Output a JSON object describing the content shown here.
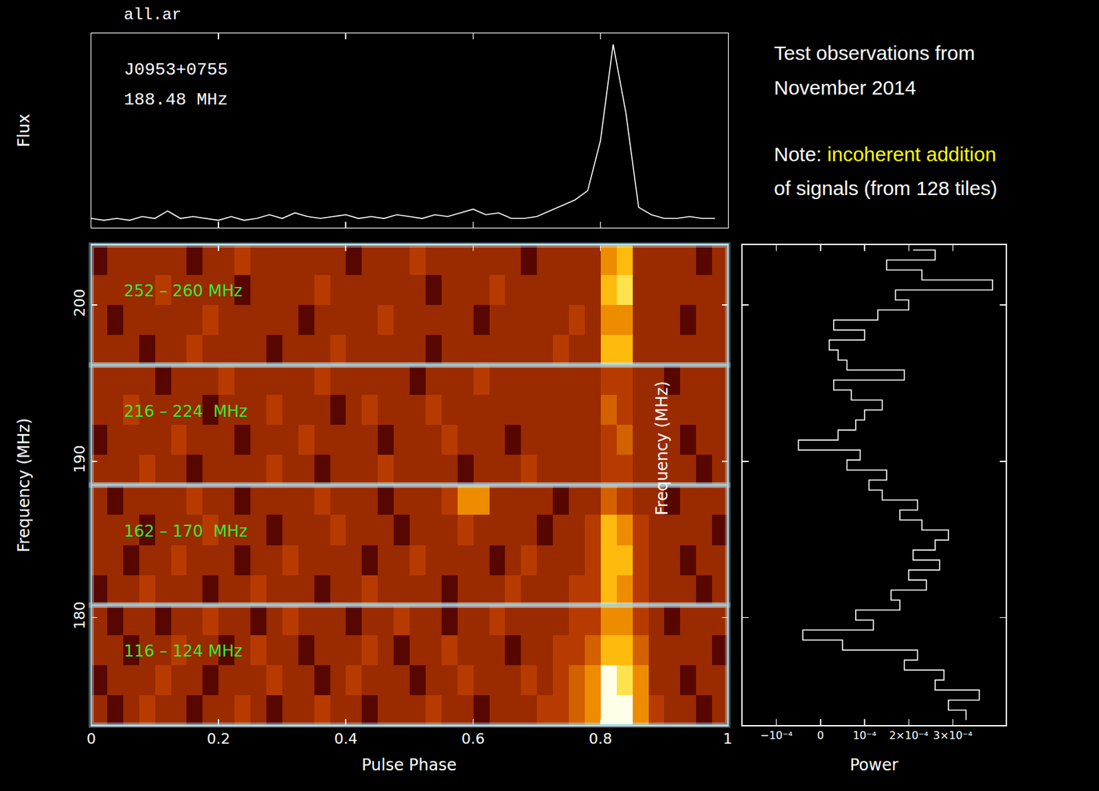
{
  "title": "all.ar",
  "notes": [
    {
      "lines": [
        [
          {
            "text": "Test observations from"
          }
        ],
        [
          {
            "text": "November 2014"
          }
        ]
      ]
    },
    {
      "lines": [
        [
          {
            "text": "Note: "
          },
          {
            "text": "incoherent addition",
            "color": "#ffff00"
          }
        ],
        [
          {
            "text": "of signals (from 128 tiles)"
          }
        ]
      ]
    }
  ],
  "chart_data": [
    {
      "type": "line",
      "ylabel": "Flux",
      "annotations": [
        "J0953+0755",
        "188.48 MHz"
      ],
      "color": "#ffffff",
      "x": [
        0,
        0.02,
        0.04,
        0.06,
        0.08,
        0.1,
        0.12,
        0.14,
        0.16,
        0.18,
        0.2,
        0.22,
        0.24,
        0.26,
        0.28,
        0.3,
        0.32,
        0.34,
        0.36,
        0.38,
        0.4,
        0.42,
        0.44,
        0.46,
        0.48,
        0.5,
        0.52,
        0.54,
        0.56,
        0.58,
        0.6,
        0.62,
        0.64,
        0.66,
        0.68,
        0.7,
        0.72,
        0.74,
        0.76,
        0.78,
        0.8,
        0.82,
        0.84,
        0.86,
        0.88,
        0.9,
        0.92,
        0.94,
        0.96,
        0.98
      ],
      "values": [
        0.03,
        0.02,
        0.03,
        0.02,
        0.04,
        0.03,
        0.07,
        0.03,
        0.04,
        0.03,
        0.02,
        0.04,
        0.02,
        0.03,
        0.05,
        0.03,
        0.06,
        0.04,
        0.03,
        0.04,
        0.05,
        0.03,
        0.04,
        0.03,
        0.05,
        0.04,
        0.03,
        0.05,
        0.04,
        0.06,
        0.08,
        0.05,
        0.06,
        0.03,
        0.03,
        0.04,
        0.07,
        0.1,
        0.13,
        0.18,
        0.45,
        0.97,
        0.6,
        0.09,
        0.05,
        0.03,
        0.03,
        0.04,
        0.03,
        0.03
      ],
      "xlim": [
        0,
        1
      ],
      "xticks": [
        0,
        0.2,
        0.4,
        0.6,
        0.8,
        1
      ],
      "ylim": [
        -0.02,
        1.03
      ],
      "tick_labels": false
    },
    {
      "type": "heatmap",
      "xlabel": "Pulse Phase",
      "ylabel": "Frequency (MHz)",
      "annotations": [
        "116 – 124 MHz",
        "162 – 170  MHz",
        "216 – 224  MHz",
        "252 – 260 MHz"
      ],
      "x": [
        0.0125,
        0.0375,
        0.0625,
        0.0875,
        0.1125,
        0.1375,
        0.1625,
        0.1875,
        0.2125,
        0.2375,
        0.2625,
        0.2875,
        0.3125,
        0.3375,
        0.3625,
        0.3875,
        0.4125,
        0.4375,
        0.4625,
        0.4875,
        0.5125,
        0.5375,
        0.5625,
        0.5875,
        0.6125,
        0.6375,
        0.6625,
        0.6875,
        0.7125,
        0.7375,
        0.7625,
        0.7875,
        0.8125,
        0.8375,
        0.8625,
        0.8875,
        0.9125,
        0.9375,
        0.9625,
        0.9875
      ],
      "y": [
        174.08,
        176.0,
        177.92,
        179.84,
        181.76,
        183.68,
        185.6,
        187.52,
        189.44,
        191.36,
        193.28,
        195.2,
        197.12,
        199.04,
        200.96,
        202.88
      ],
      "cells": [
        [
          3,
          2,
          3,
          4,
          3,
          3,
          2,
          3,
          3,
          4,
          3,
          2,
          3,
          3,
          4,
          3,
          3,
          2,
          3,
          3,
          3,
          4,
          3,
          3,
          2,
          3,
          3,
          3,
          4,
          4,
          5,
          6,
          9,
          9,
          6,
          4,
          3,
          3,
          2,
          3
        ],
        [
          2,
          3,
          3,
          3,
          4,
          3,
          3,
          2,
          3,
          3,
          3,
          4,
          3,
          3,
          2,
          3,
          4,
          3,
          3,
          3,
          2,
          3,
          3,
          4,
          3,
          3,
          3,
          4,
          3,
          4,
          5,
          6,
          9,
          8,
          6,
          3,
          3,
          2,
          3,
          3
        ],
        [
          3,
          3,
          2,
          3,
          3,
          4,
          3,
          3,
          2,
          3,
          4,
          3,
          3,
          2,
          3,
          3,
          3,
          4,
          3,
          2,
          3,
          3,
          4,
          3,
          3,
          3,
          2,
          3,
          3,
          4,
          4,
          5,
          7,
          7,
          5,
          3,
          3,
          3,
          3,
          2
        ],
        [
          3,
          2,
          3,
          3,
          2,
          3,
          3,
          4,
          3,
          3,
          2,
          3,
          4,
          3,
          3,
          3,
          2,
          3,
          3,
          4,
          3,
          3,
          2,
          3,
          3,
          4,
          3,
          3,
          3,
          3,
          4,
          4,
          6,
          6,
          4,
          3,
          2,
          3,
          3,
          3
        ],
        [
          2,
          3,
          3,
          4,
          3,
          3,
          3,
          2,
          3,
          3,
          4,
          3,
          3,
          3,
          2,
          3,
          3,
          4,
          3,
          3,
          3,
          3,
          2,
          3,
          3,
          3,
          4,
          3,
          3,
          3,
          4,
          4,
          7,
          6,
          4,
          3,
          3,
          3,
          2,
          3
        ],
        [
          3,
          3,
          2,
          3,
          3,
          4,
          3,
          3,
          3,
          2,
          3,
          3,
          4,
          3,
          3,
          3,
          3,
          2,
          3,
          3,
          4,
          3,
          3,
          3,
          3,
          2,
          3,
          4,
          3,
          3,
          3,
          4,
          7,
          7,
          4,
          3,
          3,
          2,
          3,
          3
        ],
        [
          3,
          3,
          3,
          2,
          3,
          3,
          3,
          4,
          3,
          3,
          3,
          2,
          3,
          3,
          3,
          4,
          3,
          3,
          3,
          2,
          3,
          3,
          3,
          4,
          3,
          3,
          3,
          3,
          2,
          3,
          3,
          4,
          7,
          6,
          4,
          3,
          3,
          3,
          3,
          2
        ],
        [
          3,
          2,
          3,
          3,
          3,
          3,
          4,
          3,
          3,
          2,
          3,
          3,
          3,
          3,
          4,
          3,
          3,
          3,
          2,
          3,
          3,
          3,
          4,
          6,
          6,
          3,
          3,
          3,
          3,
          2,
          3,
          3,
          5,
          4,
          3,
          3,
          2,
          3,
          3,
          3
        ],
        [
          3,
          3,
          3,
          4,
          3,
          3,
          2,
          3,
          3,
          3,
          3,
          4,
          3,
          3,
          2,
          3,
          3,
          3,
          4,
          3,
          3,
          3,
          3,
          2,
          3,
          3,
          3,
          4,
          3,
          3,
          3,
          3,
          4,
          4,
          3,
          3,
          3,
          3,
          2,
          3
        ],
        [
          2,
          3,
          3,
          3,
          3,
          4,
          3,
          3,
          3,
          2,
          3,
          3,
          3,
          4,
          3,
          3,
          3,
          3,
          2,
          3,
          3,
          3,
          4,
          3,
          3,
          3,
          2,
          3,
          3,
          3,
          3,
          3,
          4,
          5,
          3,
          3,
          3,
          2,
          3,
          3
        ],
        [
          3,
          3,
          4,
          3,
          3,
          3,
          3,
          2,
          3,
          3,
          3,
          4,
          3,
          3,
          3,
          2,
          3,
          4,
          3,
          3,
          3,
          4,
          3,
          3,
          3,
          3,
          3,
          3,
          3,
          3,
          3,
          3,
          5,
          4,
          3,
          3,
          3,
          3,
          3,
          3
        ],
        [
          3,
          3,
          3,
          3,
          2,
          3,
          3,
          3,
          4,
          3,
          3,
          3,
          3,
          3,
          4,
          3,
          3,
          3,
          3,
          3,
          2,
          3,
          3,
          3,
          4,
          3,
          3,
          3,
          3,
          3,
          3,
          3,
          4,
          4,
          3,
          3,
          2,
          3,
          3,
          3
        ],
        [
          3,
          3,
          3,
          2,
          3,
          3,
          4,
          3,
          3,
          3,
          3,
          2,
          3,
          3,
          3,
          4,
          3,
          3,
          3,
          3,
          3,
          2,
          3,
          3,
          3,
          3,
          3,
          3,
          3,
          4,
          3,
          3,
          7,
          7,
          3,
          3,
          3,
          3,
          3,
          3
        ],
        [
          3,
          2,
          3,
          3,
          3,
          3,
          3,
          4,
          3,
          3,
          3,
          3,
          3,
          2,
          3,
          3,
          3,
          3,
          4,
          3,
          3,
          3,
          3,
          3,
          2,
          3,
          3,
          3,
          3,
          3,
          4,
          3,
          6,
          6,
          3,
          3,
          3,
          2,
          3,
          3
        ],
        [
          3,
          3,
          3,
          3,
          4,
          3,
          3,
          3,
          3,
          2,
          3,
          3,
          3,
          3,
          4,
          3,
          3,
          3,
          3,
          3,
          3,
          2,
          3,
          3,
          3,
          4,
          3,
          3,
          3,
          3,
          3,
          3,
          7,
          8,
          3,
          3,
          3,
          3,
          3,
          3
        ],
        [
          2,
          3,
          3,
          3,
          3,
          3,
          2,
          3,
          3,
          4,
          3,
          3,
          3,
          3,
          3,
          3,
          2,
          3,
          3,
          3,
          4,
          3,
          3,
          3,
          3,
          3,
          3,
          2,
          3,
          3,
          3,
          3,
          6,
          7,
          3,
          3,
          3,
          3,
          2,
          3
        ]
      ],
      "zlim": [
        0,
        9
      ],
      "xlim": [
        0,
        1
      ],
      "xticks": [
        0,
        0.2,
        0.4,
        0.6,
        0.8,
        1
      ],
      "ylim": [
        173.12,
        203.84
      ],
      "yticks": [
        180,
        190,
        200
      ]
    },
    {
      "type": "line",
      "orientation": "horizontal",
      "xlabel": "Power",
      "ylabel": "Frequency (MHz)",
      "color": "#ffffff",
      "y": [
        173.44,
        174.08,
        174.72,
        175.36,
        176.0,
        176.64,
        177.28,
        177.92,
        178.56,
        179.2,
        179.84,
        180.48,
        181.12,
        181.76,
        182.4,
        183.04,
        183.68,
        184.32,
        184.96,
        185.6,
        186.24,
        186.88,
        187.52,
        188.16,
        188.8,
        189.44,
        190.08,
        190.72,
        191.36,
        192.0,
        192.64,
        193.28,
        193.92,
        194.56,
        195.2,
        195.84,
        196.48,
        197.12,
        197.76,
        198.4,
        199.04,
        199.68,
        200.32,
        200.96,
        201.6,
        202.24,
        202.88,
        203.52
      ],
      "values": [
        0.00033,
        0.00029,
        0.00036,
        0.00026,
        0.00028,
        0.00019,
        0.00022,
        5e-05,
        -4e-05,
        0.00012,
        8e-05,
        0.00018,
        0.00016,
        0.00024,
        0.0002,
        0.00027,
        0.00021,
        0.00026,
        0.00029,
        0.00023,
        0.00018,
        0.00022,
        0.00014,
        0.00011,
        0.00015,
        6e-05,
        9e-05,
        -5e-05,
        4e-05,
        8e-05,
        0.0001,
        0.00014,
        7e-05,
        3e-05,
        0.00019,
        6e-05,
        4e-05,
        2e-05,
        0.0001,
        3e-05,
        0.00013,
        0.0002,
        0.00017,
        0.00039,
        0.00023,
        0.00015,
        0.00026,
        0.00021
      ],
      "xlim": [
        -0.000177,
        0.00042
      ],
      "xticks": [
        {
          "value": -0.0001,
          "label": "−10⁻⁴"
        },
        0,
        {
          "value": 0.0001,
          "label": "10⁻⁴"
        },
        {
          "value": 0.0002,
          "label": "2×10⁻⁴"
        },
        {
          "value": 0.0003,
          "label": "3×10⁻⁴"
        }
      ],
      "ylim": [
        173.12,
        203.84
      ],
      "yticks": [
        180,
        190,
        200
      ],
      "tick_labels": "x"
    }
  ]
}
